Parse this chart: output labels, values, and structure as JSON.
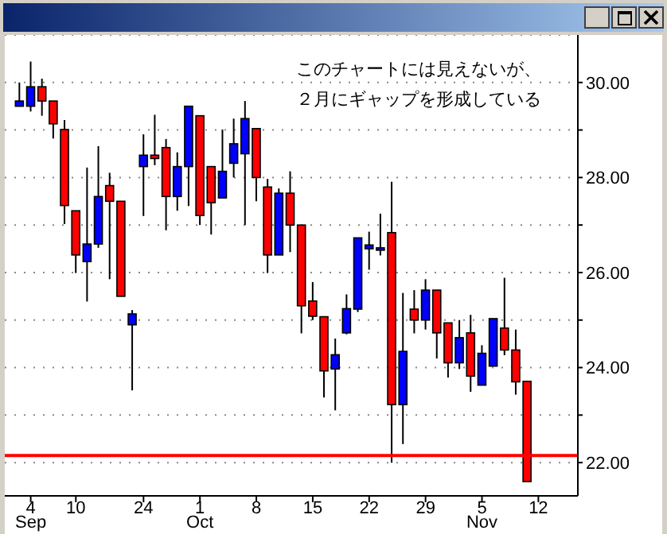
{
  "chart_data": {
    "type": "candlestick",
    "annotations": [
      "このチャートには見えないが、",
      "２月にギャップを形成している"
    ],
    "categories": [
      null,
      "4\nSep",
      null,
      null,
      null,
      "10",
      null,
      null,
      null,
      null,
      null,
      "24",
      null,
      null,
      null,
      null,
      "1\nOct",
      null,
      null,
      null,
      null,
      "8",
      null,
      null,
      null,
      null,
      "15",
      null,
      null,
      null,
      null,
      "22",
      null,
      null,
      null,
      null,
      "29",
      null,
      null,
      null,
      null,
      "5\nNov",
      null,
      null,
      null,
      null,
      "12"
    ],
    "ohlc": [
      [
        29.5,
        30.0,
        29.5,
        29.61
      ],
      [
        29.5,
        30.44,
        29.39,
        29.91
      ],
      [
        29.91,
        30.08,
        29.3,
        29.61
      ],
      [
        29.61,
        29.61,
        28.82,
        29.13
      ],
      [
        29.01,
        29.21,
        27.02,
        27.41
      ],
      [
        27.3,
        27.3,
        25.99,
        26.37
      ],
      [
        26.23,
        28.21,
        25.39,
        26.6
      ],
      [
        26.6,
        28.66,
        26.52,
        27.6
      ],
      [
        27.83,
        28.1,
        25.86,
        27.5
      ],
      [
        27.5,
        27.5,
        25.5,
        25.5
      ],
      [
        24.9,
        25.21,
        23.52,
        25.13
      ],
      [
        28.23,
        28.91,
        27.19,
        28.47
      ],
      [
        28.47,
        29.32,
        28.26,
        28.4
      ],
      [
        28.63,
        28.81,
        26.89,
        27.6
      ],
      [
        27.6,
        28.53,
        27.3,
        28.23
      ],
      [
        28.23,
        29.5,
        27.4,
        29.5
      ],
      [
        29.3,
        29.3,
        27.0,
        27.2
      ],
      [
        28.23,
        28.23,
        26.8,
        27.47
      ],
      [
        27.57,
        29.01,
        27.57,
        28.13
      ],
      [
        28.3,
        29.24,
        28.0,
        28.71
      ],
      [
        28.5,
        29.61,
        27.0,
        29.24
      ],
      [
        29.03,
        29.03,
        27.5,
        28.0
      ],
      [
        27.8,
        27.97,
        25.99,
        26.37
      ],
      [
        26.37,
        27.77,
        26.37,
        27.67
      ],
      [
        27.67,
        28.13,
        26.43,
        27.0
      ],
      [
        27.0,
        27.0,
        24.72,
        25.3
      ],
      [
        25.4,
        25.8,
        25.0,
        25.08
      ],
      [
        25.07,
        25.07,
        23.37,
        23.93
      ],
      [
        23.97,
        24.61,
        23.1,
        24.27
      ],
      [
        24.73,
        25.54,
        24.7,
        25.24
      ],
      [
        25.23,
        26.73,
        25.17,
        26.73
      ],
      [
        26.5,
        26.86,
        26.06,
        26.58
      ],
      [
        26.5,
        27.24,
        26.36,
        26.52
      ],
      [
        26.84,
        27.91,
        22.0,
        23.22
      ],
      [
        23.22,
        25.57,
        22.39,
        24.34
      ],
      [
        25.23,
        25.63,
        24.72,
        25.0
      ],
      [
        25.0,
        25.86,
        24.8,
        25.63
      ],
      [
        25.63,
        25.63,
        24.19,
        24.73
      ],
      [
        24.94,
        24.94,
        23.79,
        24.1
      ],
      [
        24.1,
        25.0,
        23.97,
        24.63
      ],
      [
        24.73,
        25.11,
        23.49,
        23.82
      ],
      [
        23.63,
        24.47,
        23.63,
        24.3
      ],
      [
        24.03,
        25.03,
        24.03,
        25.03
      ],
      [
        24.83,
        25.89,
        24.26,
        24.37
      ],
      [
        24.37,
        24.8,
        23.43,
        23.7
      ],
      [
        23.71,
        23.71,
        21.6,
        21.6
      ],
      null
    ],
    "colors": [
      "#0000ff",
      "#0000ff",
      "#ff0000",
      "#ff0000",
      "#ff0000",
      "#ff0000",
      "#0000ff",
      "#0000ff",
      "#ff0000",
      "#ff0000",
      "#0000ff",
      "#0000ff",
      "#ff0000",
      "#ff0000",
      "#0000ff",
      "#0000ff",
      "#ff0000",
      "#ff0000",
      "#0000ff",
      "#0000ff",
      "#0000ff",
      "#ff0000",
      "#ff0000",
      "#0000ff",
      "#ff0000",
      "#ff0000",
      "#ff0000",
      "#ff0000",
      "#0000ff",
      "#0000ff",
      "#0000ff",
      "#0000ff",
      "#0000ff",
      "#ff0000",
      "#0000ff",
      "#ff0000",
      "#0000ff",
      "#ff0000",
      "#ff0000",
      "#0000ff",
      "#ff0000",
      "#0000ff",
      "#0000ff",
      "#ff0000",
      "#ff0000",
      "#ff0000",
      null
    ],
    "ylim": [
      21.3,
      31.0
    ],
    "yticks": [
      {
        "value": 22,
        "label": "22.00"
      },
      {
        "value": 23,
        "label": null
      },
      {
        "value": 24,
        "label": "24.00"
      },
      {
        "value": 25,
        "label": null
      },
      {
        "value": 26,
        "label": "26.00"
      },
      {
        "value": 27,
        "label": null
      },
      {
        "value": 28,
        "label": "28.00"
      },
      {
        "value": 29,
        "label": null
      },
      {
        "value": 30,
        "label": "30.00"
      }
    ],
    "grid": "y",
    "ref_lines": [
      {
        "axis": "y",
        "value": 22.15,
        "color": "#ff0000"
      }
    ]
  }
}
